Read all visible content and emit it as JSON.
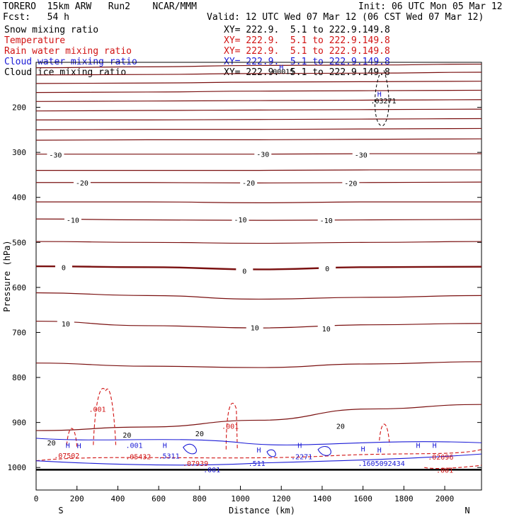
{
  "header": {
    "line1_left": "TORERO  15km ARW   Run2    NCAR/MMM",
    "line1_right": "Init: 06 UTC Mon 05 Mar 12",
    "line2_left": "Fcst:   54 h",
    "line2_right": "Valid: 12 UTC Wed 07 Mar 12 (06 CST Wed 07 Mar 12)"
  },
  "legend": [
    {
      "name": "Snow mixing ratio",
      "xy": "XY= 222.9.  5.1 to 222.9.149.8",
      "color": "#000000"
    },
    {
      "name": "Temperature",
      "xy": "XY= 222.9.  5.1 to 222.9.149.8",
      "color": "#d11313"
    },
    {
      "name": "Rain water mixing ratio",
      "xy": "XY= 222.9.  5.1 to 222.9.149.8",
      "color": "#d11313"
    },
    {
      "name": "Cloud water mixing ratio",
      "xy": "XY= 222.9.  5.1 to 222.9.149.8",
      "color": "#1a1ad6"
    },
    {
      "name": "Cloud ice mixing ratio",
      "xy": "XY= 222.9.  5.1 to 222.9.149.8",
      "color": "#000000"
    }
  ],
  "colors": {
    "temperature": "#7a1010",
    "rain": "#d11313",
    "cloud_water": "#1a1ad6",
    "axis": "#000000"
  },
  "chart_data": {
    "type": "line",
    "xlabel": "Distance (km)",
    "ylabel": "Pressure (hPa)",
    "xlim": [
      0,
      2180
    ],
    "ylim": [
      1050,
      100
    ],
    "xticks": [
      0,
      200,
      400,
      600,
      800,
      1000,
      1200,
      1400,
      1600,
      1800,
      2000
    ],
    "yticks": [
      200,
      300,
      400,
      500,
      600,
      700,
      800,
      900,
      1000
    ],
    "x_end_labels": {
      "left": "S",
      "right": "N"
    },
    "temperature_isotherms": [
      {
        "p": [
          112,
          110,
          107,
          106,
          104
        ],
        "label": ""
      },
      {
        "p": [
          128,
          127,
          125,
          124,
          122
        ],
        "label": ""
      },
      {
        "p": [
          147,
          146,
          144,
          143,
          142
        ],
        "label": ""
      },
      {
        "p": [
          167,
          166,
          164,
          163,
          162
        ],
        "label": ""
      },
      {
        "p": [
          187,
          186,
          185,
          184,
          183
        ],
        "label": ""
      },
      {
        "p": [
          208,
          207,
          206,
          205,
          204
        ],
        "label": ""
      },
      {
        "p": [
          228,
          228,
          227,
          226,
          225
        ],
        "label": ""
      },
      {
        "p": [
          250,
          249,
          249,
          248,
          247
        ],
        "label": ""
      },
      {
        "p": [
          273,
          272,
          272,
          271,
          270
        ],
        "label": ""
      },
      {
        "p": [
          304,
          304,
          304,
          303,
          303
        ],
        "label": "-30"
      },
      {
        "p": [
          340,
          340,
          340,
          339,
          339
        ],
        "label": ""
      },
      {
        "p": [
          367,
          367,
          368,
          367,
          366
        ],
        "label": "-20"
      },
      {
        "p": [
          410,
          410,
          412,
          410,
          410
        ],
        "label": ""
      },
      {
        "p": [
          448,
          450,
          451,
          450,
          449
        ],
        "label": "-10"
      },
      {
        "p": [
          498,
          500,
          502,
          500,
          498
        ],
        "label": ""
      },
      {
        "p": [
          553,
          555,
          560,
          555,
          554
        ],
        "label": "0",
        "bold": true
      },
      {
        "p": [
          612,
          618,
          626,
          622,
          618
        ],
        "label": ""
      },
      {
        "p": [
          675,
          685,
          690,
          683,
          680
        ],
        "label": "10"
      },
      {
        "p": [
          768,
          775,
          778,
          770,
          765
        ],
        "label": ""
      },
      {
        "p": [
          918,
          910,
          895,
          870,
          860
        ],
        "label": "20"
      }
    ],
    "temperature_labels": [
      {
        "x": 95,
        "p": 305,
        "text": "-30"
      },
      {
        "x": 1110,
        "p": 304,
        "text": "-30"
      },
      {
        "x": 1590,
        "p": 305,
        "text": "-30"
      },
      {
        "x": 225,
        "p": 367,
        "text": "-20"
      },
      {
        "x": 1040,
        "p": 367,
        "text": "-20"
      },
      {
        "x": 1540,
        "p": 368,
        "text": "-20"
      },
      {
        "x": 180,
        "p": 450,
        "text": "-10"
      },
      {
        "x": 1000,
        "p": 449,
        "text": "-10"
      },
      {
        "x": 1420,
        "p": 451,
        "text": "-10"
      },
      {
        "x": 135,
        "p": 555,
        "text": "0"
      },
      {
        "x": 1020,
        "p": 563,
        "text": "0"
      },
      {
        "x": 1425,
        "p": 558,
        "text": "0"
      },
      {
        "x": 145,
        "p": 680,
        "text": "10"
      },
      {
        "x": 1070,
        "p": 689,
        "text": "10"
      },
      {
        "x": 1420,
        "p": 691,
        "text": "10"
      },
      {
        "x": 1490,
        "p": 908,
        "text": "20"
      },
      {
        "x": 800,
        "p": 924,
        "text": "20"
      },
      {
        "x": 445,
        "p": 927,
        "text": "20"
      },
      {
        "x": 75,
        "p": 945,
        "text": "20"
      }
    ],
    "rain_labels": [
      {
        "x": 300,
        "p": 870,
        "text": ".001"
      },
      {
        "x": 950,
        "p": 908,
        "text": ".001"
      },
      {
        "x": 150,
        "p": 973,
        "text": ".07502"
      },
      {
        "x": 500,
        "p": 975,
        "text": ".05432"
      },
      {
        "x": 780,
        "p": 990,
        "text": ".07939"
      },
      {
        "x": 1980,
        "p": 976,
        "text": ".02096"
      },
      {
        "x": 2000,
        "p": 1005,
        "text": ".001"
      }
    ],
    "cloud_water_labels": [
      {
        "x": 480,
        "p": 950,
        "text": ".001"
      },
      {
        "x": 650,
        "p": 974,
        "text": ".5311"
      },
      {
        "x": 860,
        "p": 1004,
        "text": ".001"
      },
      {
        "x": 1080,
        "p": 990,
        "text": ".511"
      },
      {
        "x": 1300,
        "p": 975,
        "text": ".2271"
      },
      {
        "x": 1690,
        "p": 990,
        "text": ".1605092434"
      }
    ],
    "ice_labels": [
      {
        "x": 1700,
        "p": 185,
        "text": ".03271"
      },
      {
        "x": 1200,
        "p": 120,
        "text": ".00015"
      }
    ],
    "high_labels": [
      {
        "x": 155,
        "p": 950
      },
      {
        "x": 210,
        "p": 951
      },
      {
        "x": 630,
        "p": 950
      },
      {
        "x": 1090,
        "p": 960
      },
      {
        "x": 1290,
        "p": 950
      },
      {
        "x": 1600,
        "p": 958
      },
      {
        "x": 1680,
        "p": 960
      },
      {
        "x": 1870,
        "p": 950
      },
      {
        "x": 1950,
        "p": 950
      },
      {
        "x": 1680,
        "p": 170
      },
      {
        "x": 1200,
        "p": 110
      }
    ],
    "high_symbol": "H"
  }
}
